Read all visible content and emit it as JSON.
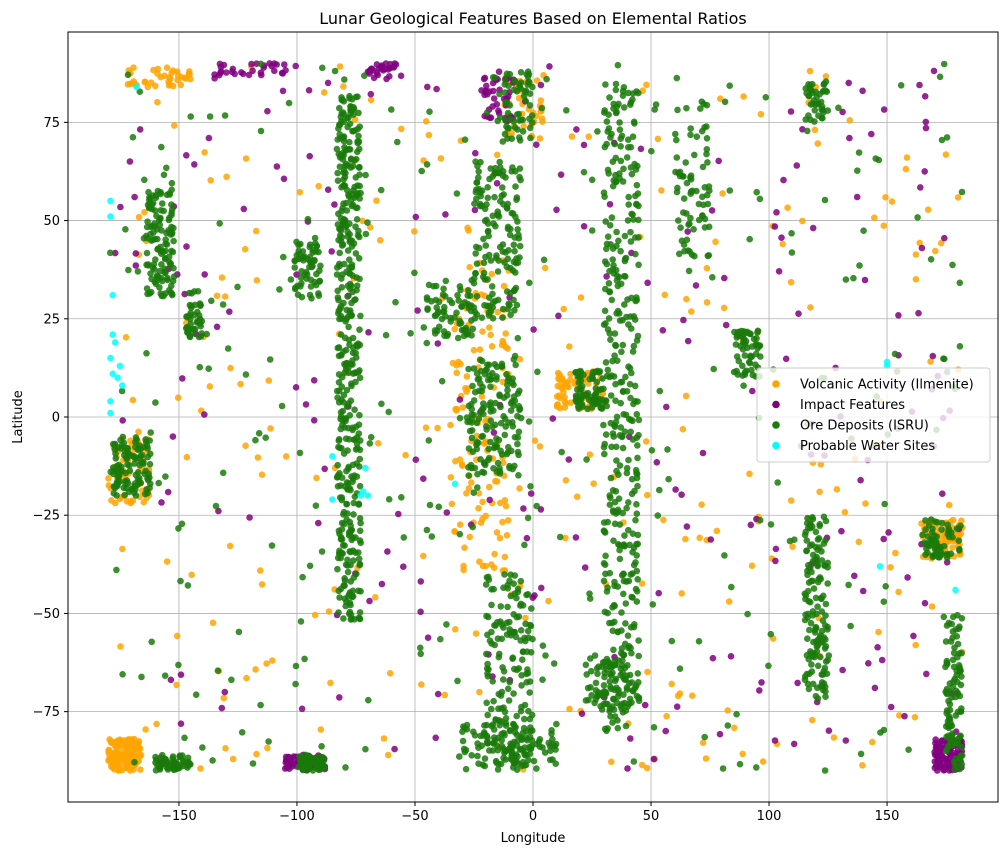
{
  "chart_data": {
    "type": "scatter",
    "title": "Lunar Geological Features Based on Elemental Ratios",
    "xlabel": "Longitude",
    "ylabel": "Latitude",
    "xlim": [
      -197,
      197
    ],
    "ylim": [
      -98,
      98
    ],
    "xticks": [
      -150,
      -100,
      -50,
      0,
      50,
      100,
      150
    ],
    "xtick_labels": [
      "−150",
      "−100",
      "−50",
      "0",
      "50",
      "100",
      "150"
    ],
    "yticks": [
      -75,
      -50,
      -25,
      0,
      25,
      50,
      75
    ],
    "ytick_labels": [
      "−75",
      "−50",
      "−25",
      "0",
      "25",
      "50",
      "75"
    ],
    "grid": true,
    "legend_position": "center-right",
    "series": [
      {
        "name": "Volcanic Activity (Ilmenite)",
        "color": "#ffa500",
        "clusters": [
          {
            "x": [
              -180,
              -166
            ],
            "y": [
              -90,
              -82
            ],
            "n": 150
          },
          {
            "x": [
              -172,
              -145
            ],
            "y": [
              84,
              89
            ],
            "n": 40
          },
          {
            "x": [
              -180,
              -162
            ],
            "y": [
              -22,
              -5
            ],
            "n": 60
          },
          {
            "x": [
              -35,
              -10
            ],
            "y": [
              -40,
              40
            ],
            "n": 120
          },
          {
            "x": [
              10,
              30
            ],
            "y": [
              2,
              12
            ],
            "n": 70
          },
          {
            "x": [
              165,
              182
            ],
            "y": [
              -36,
              -26
            ],
            "n": 70
          },
          {
            "x": [
              -12,
              5
            ],
            "y": [
              70,
              88
            ],
            "n": 40
          }
        ],
        "scatter": {
          "x": [
            -180,
            182
          ],
          "y": [
            -90,
            90
          ],
          "n": 260
        }
      },
      {
        "name": "Impact Features",
        "color": "#800080",
        "clusters": [
          {
            "x": [
              170,
              182
            ],
            "y": [
              -90,
              -82
            ],
            "n": 110
          },
          {
            "x": [
              -105,
              -88
            ],
            "y": [
              -90,
              -86
            ],
            "n": 70
          },
          {
            "x": [
              -22,
              -8
            ],
            "y": [
              75,
              88
            ],
            "n": 40
          },
          {
            "x": [
              -70,
              -55
            ],
            "y": [
              86,
              90
            ],
            "n": 30
          },
          {
            "x": [
              -135,
              -100
            ],
            "y": [
              87,
              90
            ],
            "n": 30
          }
        ],
        "scatter": {
          "x": [
            -180,
            182
          ],
          "y": [
            -90,
            90
          ],
          "n": 240
        }
      },
      {
        "name": "Ore Deposits (ISRU)",
        "color": "#1a7a0a",
        "clusters": [
          {
            "x": [
              -83,
              -73
            ],
            "y": [
              -52,
              82
            ],
            "n": 420
          },
          {
            "x": [
              -164,
              -152
            ],
            "y": [
              30,
              58
            ],
            "n": 120
          },
          {
            "x": [
              -178,
              -162
            ],
            "y": [
              -20,
              -5
            ],
            "n": 110
          },
          {
            "x": [
              -101,
              -90
            ],
            "y": [
              30,
              45
            ],
            "n": 60
          },
          {
            "x": [
              -147,
              -140
            ],
            "y": [
              20,
              32
            ],
            "n": 40
          },
          {
            "x": [
              -45,
              -25
            ],
            "y": [
              20,
              35
            ],
            "n": 70
          },
          {
            "x": [
              -28,
              -5
            ],
            "y": [
              -15,
              15
            ],
            "n": 150
          },
          {
            "x": [
              -25,
              -5
            ],
            "y": [
              25,
              65
            ],
            "n": 150
          },
          {
            "x": [
              -20,
              0
            ],
            "y": [
              -90,
              -40
            ],
            "n": 170
          },
          {
            "x": [
              30,
              45
            ],
            "y": [
              -80,
              85
            ],
            "n": 360
          },
          {
            "x": [
              18,
              30
            ],
            "y": [
              2,
              12
            ],
            "n": 70
          },
          {
            "x": [
              85,
              97
            ],
            "y": [
              10,
              22
            ],
            "n": 60
          },
          {
            "x": [
              115,
              125
            ],
            "y": [
              -72,
              -25
            ],
            "n": 140
          },
          {
            "x": [
              165,
              182
            ],
            "y": [
              -36,
              -26
            ],
            "n": 60
          },
          {
            "x": [
              175,
              182
            ],
            "y": [
              -90,
              -50
            ],
            "n": 100
          },
          {
            "x": [
              22,
              42
            ],
            "y": [
              -75,
              -60
            ],
            "n": 80
          },
          {
            "x": [
              60,
              75
            ],
            "y": [
              40,
              80
            ],
            "n": 70
          },
          {
            "x": [
              -160,
              -145
            ],
            "y": [
              -90,
              -86
            ],
            "n": 60
          },
          {
            "x": [
              -100,
              -88
            ],
            "y": [
              -90,
              -86
            ],
            "n": 60
          },
          {
            "x": [
              -30,
              10
            ],
            "y": [
              -90,
              -78
            ],
            "n": 100
          },
          {
            "x": [
              115,
              125
            ],
            "y": [
              75,
              85
            ],
            "n": 40
          },
          {
            "x": [
              -15,
              0
            ],
            "y": [
              70,
              88
            ],
            "n": 60
          }
        ],
        "scatter": {
          "x": [
            -180,
            182
          ],
          "y": [
            -90,
            90
          ],
          "n": 300
        }
      },
      {
        "name": "Probable Water Sites",
        "color": "#00ffff",
        "points": [
          [
            -179,
            51
          ],
          [
            -179,
            55
          ],
          [
            -178,
            21
          ],
          [
            -179,
            15
          ],
          [
            -177,
            19
          ],
          [
            -175,
            13
          ],
          [
            -174,
            8
          ],
          [
            -178,
            11
          ],
          [
            -176,
            10
          ],
          [
            -179,
            4
          ],
          [
            -179,
            1
          ],
          [
            -178,
            31
          ],
          [
            -168,
            84
          ],
          [
            -85,
            -10
          ],
          [
            -85,
            -21
          ],
          [
            -71,
            -13
          ],
          [
            -72,
            -19
          ],
          [
            -73,
            -20
          ],
          [
            -70,
            -20
          ],
          [
            -33,
            -17
          ],
          [
            150,
            13
          ],
          [
            150,
            14
          ],
          [
            147,
            -38
          ],
          [
            179,
            -44
          ]
        ]
      }
    ]
  }
}
